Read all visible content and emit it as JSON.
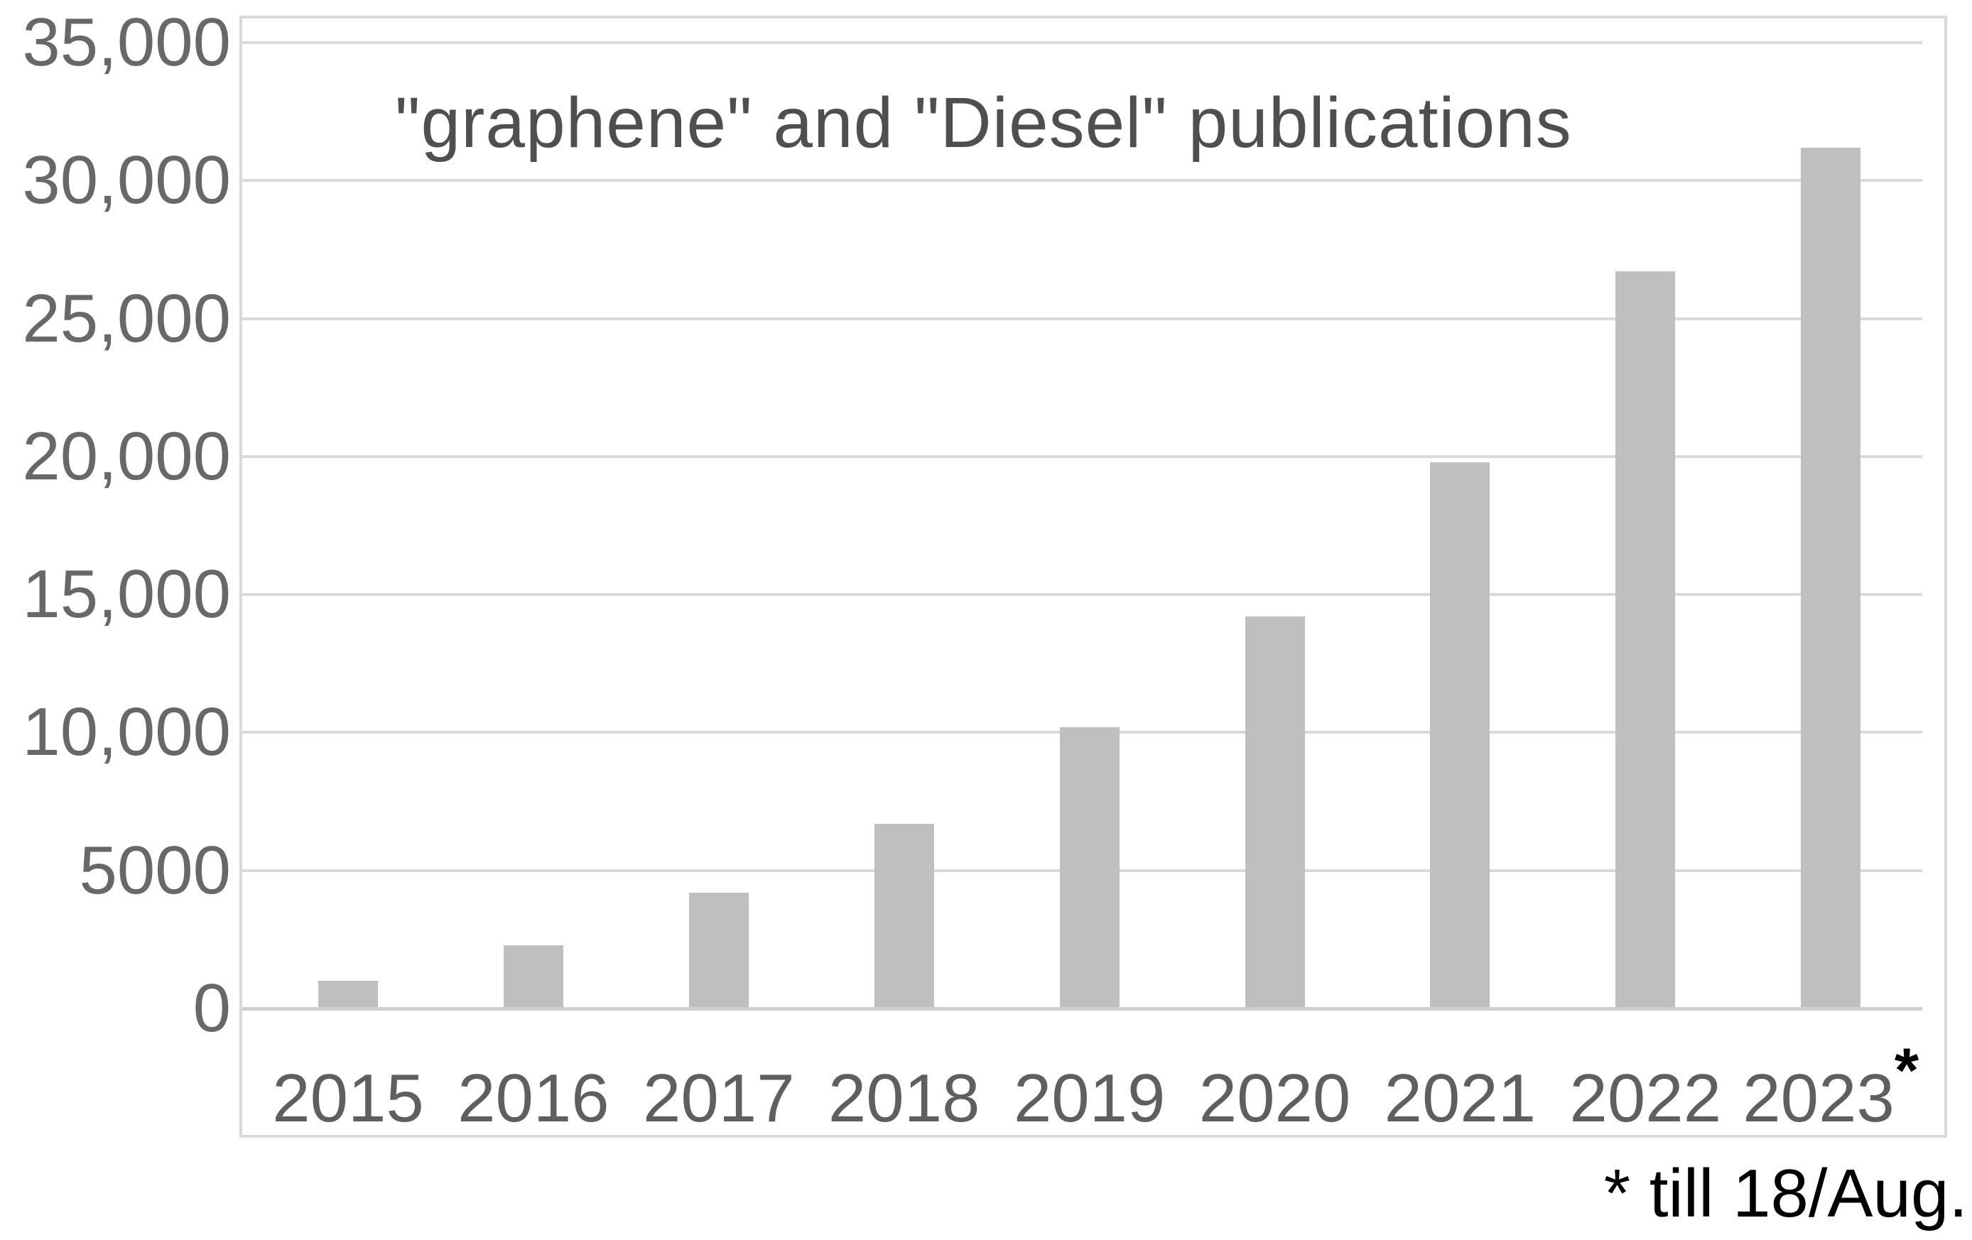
{
  "page": {
    "background": "#ffffff"
  },
  "chart_data": {
    "type": "bar",
    "title": "\"graphene\" and \"Diesel\" publications",
    "categories": [
      "2015",
      "2016",
      "2017",
      "2018",
      "2019",
      "2020",
      "2021",
      "2022",
      "2023"
    ],
    "values": [
      1000,
      2300,
      4200,
      6700,
      10200,
      14200,
      19800,
      26700,
      31200
    ],
    "last_category_superscript": "*",
    "footnote": "* till 18/Aug.",
    "xlabel": "",
    "ylabel": "",
    "ylim": [
      0,
      35000
    ],
    "y_ticks": [
      {
        "value": 0,
        "label": "0"
      },
      {
        "value": 5000,
        "label": "5000"
      },
      {
        "value": 10000,
        "label": "10,000"
      },
      {
        "value": 15000,
        "label": "15,000"
      },
      {
        "value": 20000,
        "label": "20,000"
      },
      {
        "value": 25000,
        "label": "25,000"
      },
      {
        "value": 30000,
        "label": "30,000"
      },
      {
        "value": 35000,
        "label": "35,000"
      }
    ],
    "grid": "horizontal",
    "legend": "none",
    "colors": {
      "bar": "#bfbfbf",
      "gridline": "#d9d9d9",
      "frame_border": "#d9d9d9",
      "axis_text": "#686868",
      "title_text": "#4f4f4f",
      "footnote_text": "#000000"
    }
  }
}
